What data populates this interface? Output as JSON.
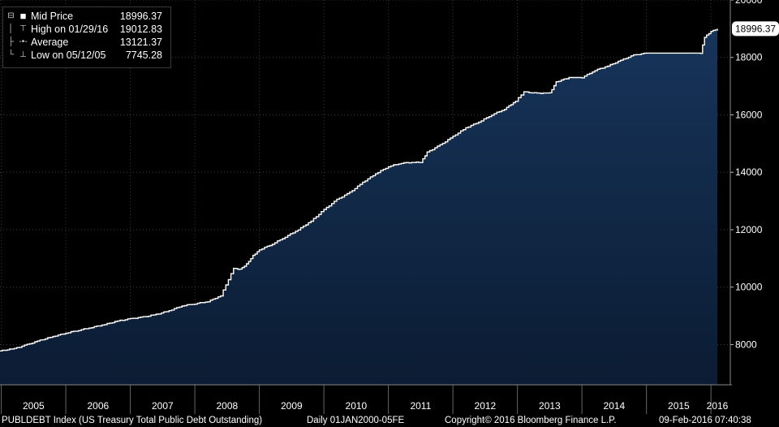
{
  "legend": {
    "mid_label": "Mid Price",
    "mid_value": "18996.37",
    "high_label": "High on 01/29/16",
    "high_value": "19012.83",
    "avg_label": "Average",
    "avg_value": "13121.37",
    "low_label": "Low on 05/12/05",
    "low_value": "7745.28"
  },
  "last_value_tag": "18996.37",
  "footer": {
    "index": "PUBLDEBT Index (US Treasury Total Public Debt Outstanding)",
    "range": "Daily 01JAN2000-05FE",
    "copyright": "Copyright© 2016 Bloomberg Finance L.P.",
    "timestamp": "09-Feb-2016 07:40:38"
  },
  "chart_data": {
    "type": "area",
    "series": [
      {
        "name": "Mid Price",
        "x": [
          2004.98,
          2005.2,
          2005.4,
          2005.6,
          2005.8,
          2006.0,
          2006.2,
          2006.4,
          2006.6,
          2006.8,
          2007.0,
          2007.2,
          2007.4,
          2007.6,
          2007.8,
          2008.0,
          2008.2,
          2008.4,
          2008.6,
          2008.7,
          2008.8,
          2008.9,
          2009.0,
          2009.2,
          2009.4,
          2009.6,
          2009.8,
          2010.0,
          2010.2,
          2010.4,
          2010.6,
          2010.8,
          2011.0,
          2011.2,
          2011.4,
          2011.5,
          2011.6,
          2011.8,
          2012.0,
          2012.2,
          2012.4,
          2012.6,
          2012.8,
          2012.97,
          2013.1,
          2013.3,
          2013.4,
          2013.5,
          2013.6,
          2013.8,
          2014.0,
          2014.2,
          2014.4,
          2014.6,
          2014.8,
          2015.0,
          2015.2,
          2015.4,
          2015.6,
          2015.8,
          2015.84,
          2015.9,
          2016.0,
          2016.1
        ],
        "values": [
          7780,
          7860,
          8000,
          8150,
          8280,
          8400,
          8500,
          8600,
          8700,
          8820,
          8900,
          8960,
          9050,
          9180,
          9350,
          9420,
          9500,
          9700,
          10650,
          10620,
          10800,
          11100,
          11300,
          11500,
          11750,
          12000,
          12300,
          12700,
          13050,
          13300,
          13650,
          13950,
          14200,
          14320,
          14350,
          14340,
          14700,
          14950,
          15250,
          15550,
          15750,
          16000,
          16200,
          16480,
          16800,
          16750,
          16760,
          16760,
          17150,
          17300,
          17300,
          17550,
          17700,
          17900,
          18080,
          18150,
          18150,
          18150,
          18150,
          18150,
          18150,
          18700,
          18900,
          19000
        ]
      }
    ],
    "x_ticks": [
      "2005",
      "2006",
      "2007",
      "2008",
      "2009",
      "2010",
      "2011",
      "2012",
      "2013",
      "2014",
      "2015",
      "2016"
    ],
    "y_ticks": [
      8000,
      10000,
      12000,
      14000,
      16000,
      18000,
      20000
    ],
    "ylim": [
      6600,
      20000
    ],
    "xlim": [
      2004.98,
      2016.3
    ],
    "grid": true,
    "legend_position": "top-left",
    "colors": {
      "background": "#000000",
      "area_top": "#17345a",
      "area_bottom": "#0b1c33",
      "line": "#ffffff",
      "grid": "#3c3c3c"
    }
  }
}
